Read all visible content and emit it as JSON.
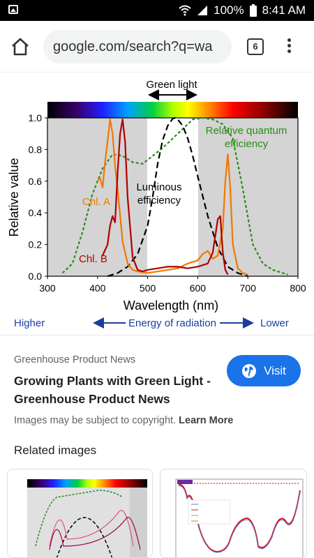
{
  "status": {
    "battery": "100%",
    "time": "8:41 AM"
  },
  "browser": {
    "url": "google.com/search?q=wa",
    "tab_count": "6"
  },
  "chart_data": {
    "type": "line",
    "xlabel": "Wavelength (nm)",
    "ylabel": "Relative value",
    "xlim": [
      300,
      800
    ],
    "ylim": [
      0,
      1.0
    ],
    "xticks": [
      "300",
      "400",
      "500",
      "600",
      "700",
      "800"
    ],
    "yticks": [
      "0.0",
      "0.2",
      "0.4",
      "0.6",
      "0.8",
      "1.0"
    ],
    "top_label": "Green light",
    "energy_label": "Energy of radiation",
    "energy_low": "Higher",
    "energy_high": "Lower",
    "series": [
      {
        "name": "Relative quantum efficiency",
        "color": "#2a8a1a",
        "x": [
          330,
          350,
          370,
          390,
          410,
          430,
          450,
          470,
          490,
          510,
          530,
          550,
          570,
          590,
          610,
          630,
          650,
          670,
          690,
          710,
          730,
          750,
          770,
          780
        ],
        "y": [
          0.02,
          0.08,
          0.28,
          0.52,
          0.68,
          0.77,
          0.76,
          0.72,
          0.71,
          0.76,
          0.81,
          0.87,
          0.93,
          0.99,
          1.0,
          0.99,
          0.96,
          0.87,
          0.55,
          0.2,
          0.08,
          0.04,
          0.02,
          0.01
        ]
      },
      {
        "name": "Luminous efficiency",
        "color": "#000000",
        "x": [
          420,
          440,
          460,
          480,
          500,
          510,
          520,
          530,
          540,
          550,
          555,
          560,
          570,
          580,
          590,
          600,
          620,
          640,
          660,
          680,
          700
        ],
        "y": [
          0.0,
          0.02,
          0.06,
          0.14,
          0.32,
          0.5,
          0.71,
          0.86,
          0.95,
          0.995,
          1.0,
          0.99,
          0.95,
          0.87,
          0.76,
          0.63,
          0.38,
          0.18,
          0.06,
          0.02,
          0.0
        ]
      },
      {
        "name": "Chl. A",
        "color": "#f07800",
        "x": [
          400,
          405,
          410,
          415,
          420,
          425,
          430,
          435,
          440,
          450,
          460,
          470,
          480,
          500,
          520,
          540,
          560,
          580,
          600,
          610,
          620,
          630,
          640,
          650,
          655,
          660,
          665,
          670,
          680,
          690,
          700
        ],
        "y": [
          0.6,
          0.62,
          0.56,
          0.72,
          0.85,
          0.99,
          0.9,
          0.7,
          0.55,
          0.22,
          0.08,
          0.04,
          0.03,
          0.02,
          0.03,
          0.04,
          0.05,
          0.08,
          0.1,
          0.14,
          0.16,
          0.11,
          0.13,
          0.3,
          0.6,
          0.77,
          0.55,
          0.2,
          0.05,
          0.02,
          0.01
        ]
      },
      {
        "name": "Chl. B",
        "color": "#b00000",
        "x": [
          410,
          420,
          425,
          430,
          435,
          440,
          445,
          450,
          455,
          460,
          470,
          480,
          490,
          500,
          520,
          540,
          560,
          580,
          600,
          620,
          630,
          640,
          645,
          650,
          655,
          660
        ],
        "y": [
          0.13,
          0.2,
          0.32,
          0.38,
          0.34,
          0.65,
          0.9,
          0.99,
          0.85,
          0.5,
          0.12,
          0.04,
          0.03,
          0.04,
          0.05,
          0.06,
          0.06,
          0.05,
          0.06,
          0.08,
          0.15,
          0.36,
          0.38,
          0.15,
          0.04,
          0.01
        ]
      }
    ],
    "labels": {
      "chla": "Chl. A",
      "chlb": "Chl. B",
      "lum1": "Luminous",
      "lum2": "efficiency",
      "rqe1": "Relative quantum",
      "rqe2": "efficiency"
    }
  },
  "result": {
    "source": "Greenhouse Product News",
    "title": "Growing Plants with Green Light - Greenhouse Product News",
    "visit": "Visit",
    "copyright": "Images may be subject to copyright.",
    "learn_more": "Learn More"
  },
  "related": {
    "heading": "Related images"
  }
}
